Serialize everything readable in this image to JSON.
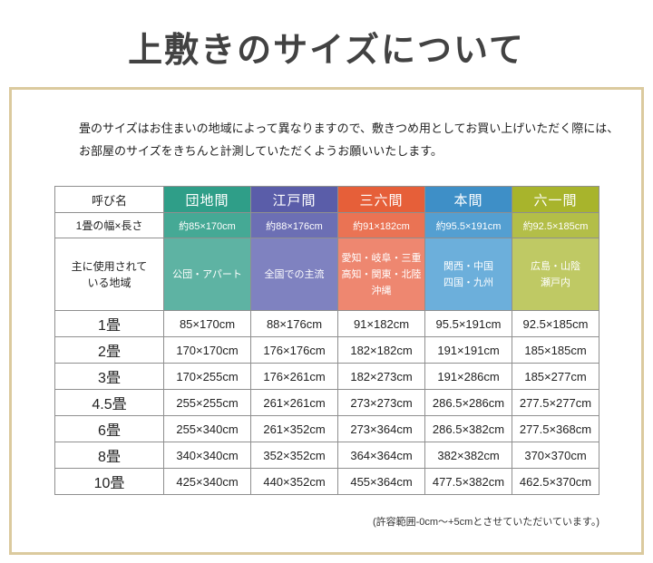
{
  "page": {
    "title": "上敷きのサイズについて",
    "intro": "畳のサイズはお住まいの地域によって異なりますので、敷きつめ用としてお買い上げいただく際には、\nお部屋のサイズをきちんと計測していただくようお願いいたします。",
    "footnote": "(許容範囲-0cm～+5cmとさせていただいています。)"
  },
  "table": {
    "corner_label": "呼び名",
    "size_row_label": "1畳の幅×長さ",
    "region_row_label": "主に使用されて\nいる地域",
    "columns": [
      {
        "label": "団地間",
        "size": "約85×170cm",
        "region": "公団・アパート",
        "colors": {
          "header": "#2f9e88",
          "size": "#45a995",
          "region": "#5eb3a3"
        }
      },
      {
        "label": "江戸間",
        "size": "約88×176cm",
        "region": "全国での主流",
        "colors": {
          "header": "#5a5da9",
          "size": "#6c6fb4",
          "region": "#7f82c0"
        }
      },
      {
        "label": "三六間",
        "size": "約91×182cm",
        "region": "愛知・岐阜・三重\n高知・関東・北陸\n沖縄",
        "colors": {
          "header": "#e65f39",
          "size": "#ea7354",
          "region": "#ee8770"
        }
      },
      {
        "label": "本間",
        "size": "約95.5×191cm",
        "region": "関西・中国\n四国・九州",
        "colors": {
          "header": "#3e8fc7",
          "size": "#549fd1",
          "region": "#6cafdb"
        }
      },
      {
        "label": "六一間",
        "size": "約92.5×185cm",
        "region": "広島・山陰\n瀬戸内",
        "colors": {
          "header": "#a8b42c",
          "size": "#b3be48",
          "region": "#bfc964"
        }
      }
    ],
    "rows": [
      {
        "label": "1畳",
        "values": [
          "85×170cm",
          "88×176cm",
          "91×182cm",
          "95.5×191cm",
          "92.5×185cm"
        ]
      },
      {
        "label": "2畳",
        "values": [
          "170×170cm",
          "176×176cm",
          "182×182cm",
          "191×191cm",
          "185×185cm"
        ]
      },
      {
        "label": "3畳",
        "values": [
          "170×255cm",
          "176×261cm",
          "182×273cm",
          "191×286cm",
          "185×277cm"
        ]
      },
      {
        "label": "4.5畳",
        "values": [
          "255×255cm",
          "261×261cm",
          "273×273cm",
          "286.5×286cm",
          "277.5×277cm"
        ]
      },
      {
        "label": "6畳",
        "values": [
          "255×340cm",
          "261×352cm",
          "273×364cm",
          "286.5×382cm",
          "277.5×368cm"
        ]
      },
      {
        "label": "8畳",
        "values": [
          "340×340cm",
          "352×352cm",
          "364×364cm",
          "382×382cm",
          "370×370cm"
        ]
      },
      {
        "label": "10畳",
        "values": [
          "425×340cm",
          "440×352cm",
          "455×364cm",
          "477.5×382cm",
          "462.5×370cm"
        ]
      }
    ]
  }
}
